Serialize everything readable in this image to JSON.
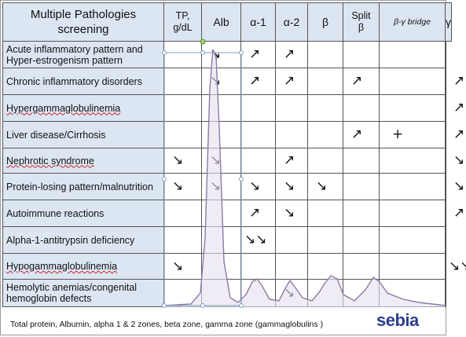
{
  "header": {
    "title": "Multiple Pathologies screening",
    "columns": [
      {
        "label": "TP, g/dL"
      },
      {
        "label": "Alb"
      },
      {
        "label": "α-1"
      },
      {
        "label": "α-2"
      },
      {
        "label": "β"
      },
      {
        "label": "Split β"
      },
      {
        "label": "β-γ bridge"
      },
      {
        "label": "γ"
      }
    ]
  },
  "rows": [
    {
      "label": "Acute inflammatory pattern and Hyper-estrogenism pattern",
      "cells": [
        "",
        "↘",
        "↗",
        "↗",
        "",
        "",
        "",
        ""
      ]
    },
    {
      "label": "Chronic inflammatory disorders",
      "cells": [
        "",
        "↘",
        "↗",
        "↗",
        "",
        "↗",
        "",
        "↗"
      ]
    },
    {
      "label": "Hypergammaglobulinemia",
      "cells": [
        "",
        "",
        "",
        "",
        "",
        "",
        "",
        "↗"
      ]
    },
    {
      "label": "Liver disease/Cirrhosis",
      "cells": [
        "",
        "",
        "",
        "",
        "",
        "↗",
        "+",
        "↗"
      ]
    },
    {
      "label": "Nephrotic syndrome",
      "cells": [
        "↘",
        "↘",
        "",
        "↗",
        "",
        "",
        "",
        "↘"
      ]
    },
    {
      "label": "Protein-losing pattern/malnutrition",
      "cells": [
        "↘",
        "↘",
        "↘",
        "↘",
        "↘",
        "",
        "",
        "↘"
      ]
    },
    {
      "label": "Autoimmune reactions",
      "cells": [
        "",
        "",
        "↗",
        "↘",
        "",
        "",
        "",
        "↗"
      ]
    },
    {
      "label": "Alpha-1-antitrypsin deficiency",
      "cells": [
        "",
        "",
        "↘↘",
        "",
        "",
        "",
        "",
        ""
      ]
    },
    {
      "label": "Hypogammaglobulinemia",
      "cells": [
        "↘",
        "",
        "",
        "",
        "",
        "",
        "",
        "↘↘"
      ]
    },
    {
      "label": "Hemolytic anemias/congenital hemoglobin defects",
      "cells": [
        "",
        "",
        "",
        "↘",
        "",
        "",
        "",
        ""
      ]
    }
  ],
  "caption": "Total protein, Albumin, alpha 1 & 2  zones, beta zone, gamma zone (gammaglobulins )",
  "logo": "sebia",
  "colors": {
    "header_bg": "#dce6f2",
    "curve": "#8c7aa6",
    "curve_fill": "#e6e0ee",
    "logo": "#2b3f8f"
  }
}
